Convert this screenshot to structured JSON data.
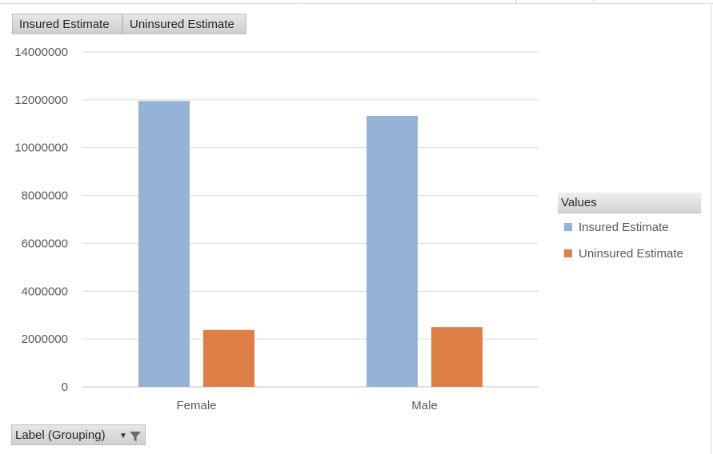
{
  "field_buttons": {
    "values": [
      "Insured Estimate",
      "Uninsured Estimate"
    ],
    "axis_field": "Label (Grouping)"
  },
  "legend": {
    "title": "Values",
    "items": [
      {
        "label": "Insured Estimate",
        "color": "#95b3d7"
      },
      {
        "label": "Uninsured Estimate",
        "color": "#de7f45"
      }
    ]
  },
  "chart_data": {
    "type": "bar",
    "title": "",
    "xlabel": "",
    "ylabel": "",
    "categories": [
      "Female",
      "Male"
    ],
    "series": [
      {
        "name": "Insured Estimate",
        "color": "#95b3d7",
        "values": [
          11950000,
          11330000
        ]
      },
      {
        "name": "Uninsured Estimate",
        "color": "#de7f45",
        "values": [
          2380000,
          2500000
        ]
      }
    ],
    "ylim": [
      0,
      14000000
    ],
    "yticks": [
      "0",
      "2000000",
      "4000000",
      "6000000",
      "8000000",
      "10000000",
      "12000000",
      "14000000"
    ],
    "grid": true,
    "legend_position": "right"
  }
}
